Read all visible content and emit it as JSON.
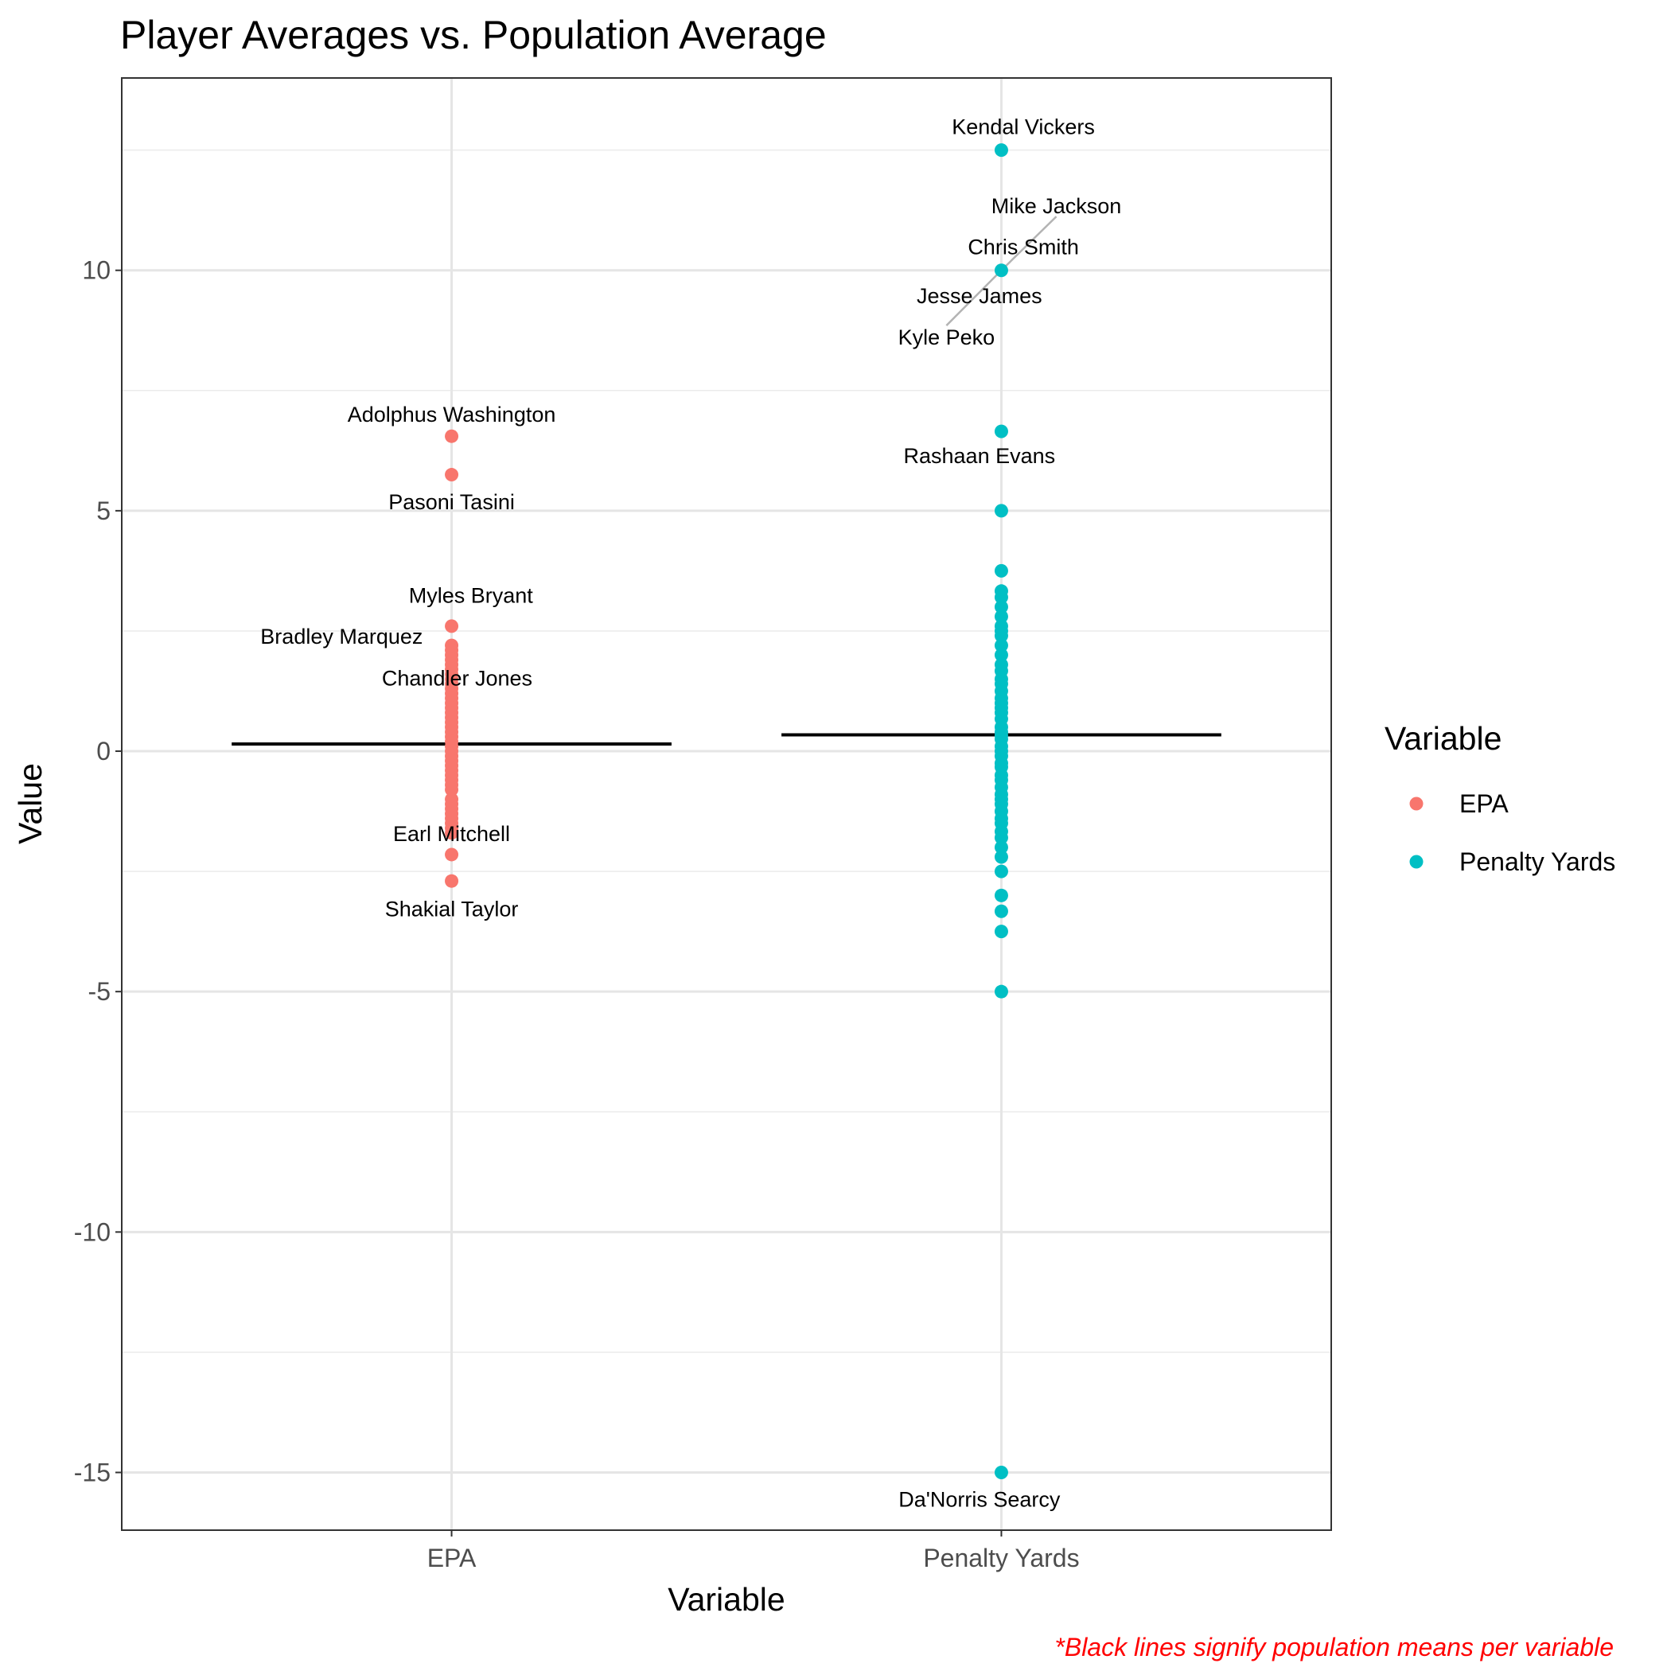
{
  "chart_data": {
    "type": "scatter",
    "title": "Player Averages vs. Population Average",
    "xlabel": "Variable",
    "ylabel": "Value",
    "ylim": [
      -16.2,
      14
    ],
    "y_ticks": [
      10,
      5,
      0,
      -5,
      -10,
      -15
    ],
    "y_tick_labels": [
      "10",
      "5",
      "0",
      "-5",
      "-10",
      "-15"
    ],
    "categories": [
      "EPA",
      "Penalty Yards"
    ],
    "grid": true,
    "legend": {
      "title": "Variable",
      "position": "right",
      "entries": [
        {
          "label": "EPA",
          "color": "#F8766D"
        },
        {
          "label": "Penalty Yards",
          "color": "#00BFC4"
        }
      ]
    },
    "caption": "*Black lines signify population means per variable",
    "means": [
      {
        "category": "EPA",
        "value": 0.15
      },
      {
        "category": "Penalty Yards",
        "value": 0.34
      }
    ],
    "series": [
      {
        "category": "EPA",
        "color": "#F8766D",
        "values": [
          6.55,
          5.75,
          2.6,
          2.2,
          2.1,
          2.0,
          1.9,
          1.8,
          1.7,
          1.6,
          1.5,
          1.4,
          1.3,
          1.2,
          1.1,
          1.0,
          0.9,
          0.8,
          0.7,
          0.6,
          0.5,
          0.4,
          0.3,
          0.2,
          0.1,
          0.0,
          -0.1,
          -0.2,
          -0.3,
          -0.4,
          -0.5,
          -0.6,
          -0.7,
          -0.8,
          -1.0,
          -1.1,
          -1.2,
          -1.3,
          -1.4,
          -1.5,
          -1.6,
          -1.7,
          -2.15,
          -2.7
        ]
      },
      {
        "category": "Penalty Yards",
        "color": "#00BFC4",
        "values": [
          12.5,
          10.0,
          6.65,
          5.0,
          3.75,
          3.33,
          3.2,
          3.0,
          2.8,
          2.6,
          2.5,
          2.4,
          2.2,
          2.0,
          1.8,
          1.67,
          1.5,
          1.4,
          1.25,
          1.1,
          1.0,
          0.9,
          0.8,
          0.67,
          0.5,
          0.4,
          0.33,
          0.25,
          0.1,
          0.0,
          -0.1,
          -0.25,
          -0.33,
          -0.5,
          -0.6,
          -0.75,
          -0.9,
          -1.0,
          -1.1,
          -1.25,
          -1.4,
          -1.5,
          -1.67,
          -1.8,
          -2.0,
          -2.2,
          -2.5,
          -3.0,
          -3.33,
          -3.75,
          -5.0,
          -15.0
        ]
      }
    ],
    "annotations": [
      {
        "text": "Adolphus Washington",
        "category": "EPA",
        "value": 6.55,
        "label_value": 7.02,
        "offset": 0
      },
      {
        "text": "Pasoni Tasini",
        "category": "EPA",
        "value": 5.75,
        "label_value": 5.2,
        "offset": 0
      },
      {
        "text": "Myles Bryant",
        "category": "EPA",
        "value": 2.6,
        "label_value": 3.25,
        "offset": 0.035
      },
      {
        "text": "Bradley Marquez",
        "category": "EPA",
        "value": 2.2,
        "label_value": 2.4,
        "offset": -0.2
      },
      {
        "text": "Chandler Jones",
        "category": "EPA",
        "value": 2.0,
        "label_value": 1.53,
        "offset": 0.01
      },
      {
        "text": "Earl Mitchell",
        "category": "EPA",
        "value": -2.15,
        "label_value": -1.7,
        "offset": 0
      },
      {
        "text": "Shakial Taylor",
        "category": "EPA",
        "value": -2.7,
        "label_value": -3.27,
        "offset": 0
      },
      {
        "text": "Kendal Vickers",
        "category": "Penalty Yards",
        "value": 12.5,
        "label_value": 13.0,
        "offset": 0.04
      },
      {
        "text": "Mike Jackson",
        "category": "Penalty Yards",
        "value": 10.0,
        "label_value": 11.35,
        "offset": 0.1,
        "leader": true
      },
      {
        "text": "Chris Smith",
        "category": "Penalty Yards",
        "value": 10.0,
        "label_value": 10.5,
        "offset": 0.04
      },
      {
        "text": "Jesse James",
        "category": "Penalty Yards",
        "value": 10.0,
        "label_value": 9.48,
        "offset": -0.04
      },
      {
        "text": "Kyle Peko",
        "category": "Penalty Yards",
        "value": 10.0,
        "label_value": 8.62,
        "offset": -0.1,
        "leader": true
      },
      {
        "text": "Rashaan Evans",
        "category": "Penalty Yards",
        "value": 6.65,
        "label_value": 6.16,
        "offset": -0.04
      },
      {
        "text": "Da'Norris Searcy",
        "category": "Penalty Yards",
        "value": -15.0,
        "label_value": -15.55,
        "offset": -0.04
      }
    ]
  }
}
